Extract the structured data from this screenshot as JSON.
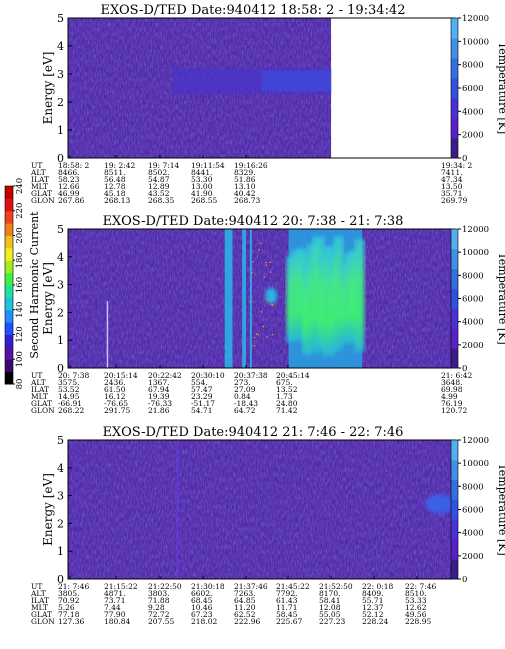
{
  "colors": {
    "background": "#ffffff",
    "ink": "#000000",
    "plasma_base": "#5226a8",
    "plasma_dark": "#3a1c8c",
    "plasma_blue": "#2a44d0",
    "plasma_cyan": "#28b8e8",
    "plasma_green": "#3ef070"
  },
  "temp_bar": {
    "label": "Temperature [K]",
    "ticks": [
      "0",
      "2000",
      "4000",
      "6000",
      "8000",
      "10000",
      "12000"
    ],
    "colors": [
      "#3a1c8c",
      "#5a20c8",
      "#4a30d8",
      "#3050e0",
      "#3070e0",
      "#4090e8",
      "#50b0f0"
    ]
  },
  "current_bar": {
    "label": "Second Harmonic Current",
    "ticks": [
      "80",
      "100",
      "120",
      "140",
      "160",
      "180",
      "200",
      "220",
      "240"
    ],
    "colors": [
      "#000000",
      "#3a0a6a",
      "#5a10a0",
      "#3020d0",
      "#2050ff",
      "#2090ff",
      "#20c0e0",
      "#20e0a0",
      "#40f040",
      "#a0f020",
      "#f0f020",
      "#f0c020",
      "#f08020",
      "#f04020",
      "#e01010",
      "#c00000"
    ]
  },
  "chart_data": [
    {
      "type": "heatmap",
      "title": "EXOS-D/TED   Date:940412  18:58: 2 - 19:34:42",
      "ylabel": "Energy [eV]",
      "ylim": [
        0,
        5
      ],
      "yticks": [
        "0",
        "1",
        "2",
        "3",
        "4",
        "5"
      ],
      "data_coverage": 0.68,
      "features": [
        {
          "kind": "band",
          "from": 0.27,
          "to": 0.98,
          "ymin": 2.3,
          "ymax": 3.2
        }
      ],
      "axis_table": {
        "rows": [
          {
            "label": "UT",
            "values": [
              "18:58: 2",
              "19: 2:42",
              "19: 7:14",
              "19:11:54",
              "19:16:26",
              "",
              "",
              "",
              "",
              "19:34: 2"
            ]
          },
          {
            "label": "ALT",
            "values": [
              "8466.",
              "8511.",
              "8502.",
              "8441.",
              "8329.",
              "",
              "",
              "",
              "",
              "7411."
            ]
          },
          {
            "label": "ILAT",
            "values": [
              "58.23",
              "56.48",
              "54.87",
              "53.30",
              "51.86",
              "",
              "",
              "",
              "",
              "47.34"
            ]
          },
          {
            "label": "MLT",
            "values": [
              "12.66",
              "12.78",
              "12.89",
              "13.00",
              "13.10",
              "",
              "",
              "",
              "",
              "13.50"
            ]
          },
          {
            "label": "GLAT",
            "values": [
              "46.99",
              "45.18",
              "43.52",
              "41.90",
              "40.42",
              "",
              "",
              "",
              "",
              "35.71"
            ]
          },
          {
            "label": "GLON",
            "values": [
              "267.86",
              "268.13",
              "268.35",
              "268.55",
              "268.73",
              "",
              "",
              "",
              "",
              "269.79"
            ]
          }
        ]
      }
    },
    {
      "type": "heatmap",
      "title": "EXOS-D/TED   Date:940412  20: 7:38 - 21: 7:38",
      "ylabel": "Energy [eV]",
      "ylim": [
        0,
        5
      ],
      "yticks": [
        "0",
        "1",
        "2",
        "3",
        "4",
        "5"
      ],
      "data_coverage": 1.0,
      "features": [
        {
          "kind": "cyan_column",
          "from": 0.405,
          "to": 0.425
        },
        {
          "kind": "cyan_column",
          "from": 0.45,
          "to": 0.46
        },
        {
          "kind": "cyan_column",
          "from": 0.47,
          "to": 0.475
        },
        {
          "kind": "blob",
          "at": 0.525,
          "y": 2.6
        },
        {
          "kind": "green_region",
          "from": 0.57,
          "to": 0.76
        }
      ],
      "axis_table": {
        "rows": [
          {
            "label": "UT",
            "values": [
              "20: 7:38",
              "20:15:14",
              "20:22:42",
              "20:30:10",
              "20:37:38",
              "20:45:14",
              "",
              "",
              "",
              "21: 6:42"
            ]
          },
          {
            "label": "ALT",
            "values": [
              "3575.",
              "2436.",
              "1367.",
              "554.",
              "273.",
              "675.",
              "",
              "",
              "",
              "3648."
            ]
          },
          {
            "label": "ILAT",
            "values": [
              "53.52",
              "61.50",
              "67.94",
              "57.47",
              "27.09",
              "13.52",
              "",
              "",
              "",
              "69.98"
            ]
          },
          {
            "label": "MLT",
            "values": [
              "14.95",
              "16.12",
              "19.39",
              "23.29",
              "0.84",
              "1.73",
              "",
              "",
              "",
              "4.99"
            ]
          },
          {
            "label": "GLAT",
            "values": [
              "-66.91",
              "-76.65",
              "-76.33",
              "-51.17",
              "-18.43",
              "24.80",
              "",
              "",
              "",
              "76.19"
            ]
          },
          {
            "label": "GLON",
            "values": [
              "268.22",
              "291.75",
              "21.86",
              "54.71",
              "64.72",
              "71.42",
              "",
              "",
              "",
              "120.72"
            ]
          }
        ]
      }
    },
    {
      "type": "heatmap",
      "title": "EXOS-D/TED   Date:940412  21: 7:46 - 22: 7:46",
      "ylabel": "Energy [eV]",
      "ylim": [
        0,
        5
      ],
      "yticks": [
        "0",
        "1",
        "2",
        "3",
        "4",
        "5"
      ],
      "data_coverage": 1.0,
      "features": [
        {
          "kind": "dark_column",
          "from": 0.28,
          "to": 0.285
        },
        {
          "kind": "blob",
          "at": 0.96,
          "y": 2.7
        }
      ],
      "axis_table": {
        "rows": [
          {
            "label": "UT",
            "values": [
              "21: 7:46",
              "21:15:22",
              "21:22:50",
              "21:30:18",
              "21:37:46",
              "21:45:22",
              "21:52:50",
              "22: 0:18",
              "22: 7:46",
              ""
            ]
          },
          {
            "label": "ALT",
            "values": [
              "3805.",
              "4871.",
              "3803.",
              "6602.",
              "7263.",
              "7792.",
              "8170.",
              "8409.",
              "8510.",
              ""
            ]
          },
          {
            "label": "ILAT",
            "values": [
              "70.92",
              "73.71",
              "71.88",
              "68.45",
              "64.85",
              "61.43",
              "58.41",
              "55.71",
              "53.33",
              ""
            ]
          },
          {
            "label": "MLT",
            "values": [
              "5.26",
              "7.44",
              "9.28",
              "10.46",
              "11.20",
              "11.71",
              "12.08",
              "12.37",
              "12.62",
              ""
            ]
          },
          {
            "label": "GLAT",
            "values": [
              "77.18",
              "77.90",
              "72.72",
              "67.23",
              "62.52",
              "58.45",
              "55.05",
              "52.12",
              "49.56",
              ""
            ]
          },
          {
            "label": "GLON",
            "values": [
              "127.36",
              "180.84",
              "207.55",
              "218.02",
              "222.96",
              "225.67",
              "227.23",
              "228.24",
              "228.95",
              ""
            ]
          }
        ]
      }
    }
  ]
}
